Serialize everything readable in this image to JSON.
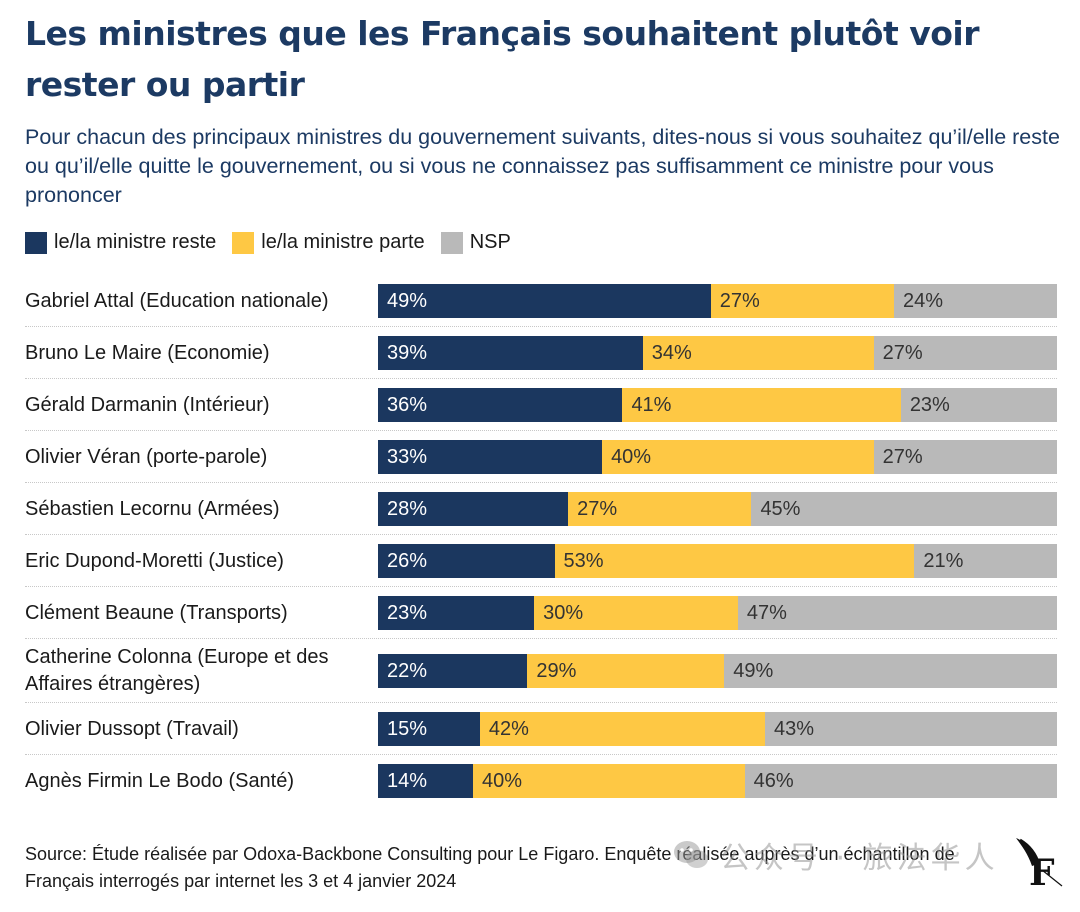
{
  "header": {
    "title": "Les ministres que les Français souhaitent plutôt voir rester ou partir",
    "subtitle": "Pour chacun des principaux ministres du gouvernement suivants, dites-nous si vous souhaitez qu’il/elle reste ou qu’il/elle quitte le gouvernement, ou si vous ne connaissez pas suffisamment ce ministre pour vous prononcer"
  },
  "colors": {
    "reste": "#1b375f",
    "parte": "#fec844",
    "nsp": "#b9b9b9"
  },
  "chart_data": {
    "type": "bar",
    "orientation": "horizontal",
    "stacked": true,
    "title": "Les ministres que les Français souhaitent plutôt voir rester ou partir",
    "subtitle": "Pour chacun des principaux ministres du gouvernement suivants, dites-nous si vous souhaitez qu’il/elle reste ou qu’il/elle quitte le gouvernement, ou si vous ne connaissez pas suffisamment ce ministre pour vous prononcer",
    "xlabel": "",
    "ylabel": "",
    "xlim": [
      0,
      100
    ],
    "unit": "%",
    "grid": false,
    "legend_position": "top-left",
    "categories": [
      "Gabriel Attal (Education nationale)",
      "Bruno Le Maire (Economie)",
      "Gérald Darmanin (Intérieur)",
      "Olivier Véran (porte-parole)",
      "Sébastien Lecornu (Armées)",
      "Eric Dupond-Moretti (Justice)",
      "Clément Beaune (Transports)",
      "Catherine Colonna (Europe et des Affaires étrangères)",
      "Olivier Dussopt (Travail)",
      "Agnès Firmin Le Bodo (Santé)"
    ],
    "series": [
      {
        "key": "reste",
        "name": "le/la ministre reste",
        "values": [
          49,
          39,
          36,
          33,
          28,
          26,
          23,
          22,
          15,
          14
        ]
      },
      {
        "key": "parte",
        "name": "le/la ministre parte",
        "values": [
          27,
          34,
          41,
          40,
          27,
          53,
          30,
          29,
          42,
          40
        ]
      },
      {
        "key": "nsp",
        "name": "NSP",
        "values": [
          24,
          27,
          23,
          27,
          45,
          21,
          47,
          49,
          43,
          46
        ]
      }
    ]
  },
  "footer": {
    "source": "Source: Étude réalisée par Odoxa-Backbone Consulting pour Le Figaro. Enquête réalisée auprès d’un échantillon de Français interrogés par internet les 3 et 4 janvier 2024",
    "watermark": "公众号 · 旅法华人",
    "logo_letter": "F"
  }
}
